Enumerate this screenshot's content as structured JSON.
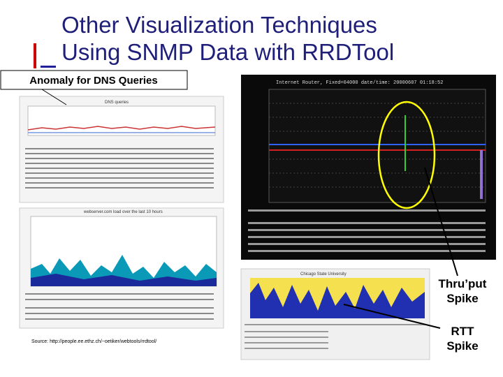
{
  "slide": {
    "title_line1": "Other Visualization Techniques",
    "title_line2": "Using SNMP Data with RRDTool",
    "anomaly_label": "Anomaly for DNS Queries",
    "throughput_label": "Thru’put Spike",
    "rtt_label": "RTT Spike",
    "source": "Source: http://people.ee.ethz.ch/~oetiker/webtools/rrdtool/",
    "screens": {
      "dns_title": "DNS queries",
      "webserver_title": "webserver.com load over the last 10 hours",
      "router_title": "Internet Router, Fixed=04000  date/time: 20000607 01:18:52",
      "chicago_title": "Chicago State University"
    }
  }
}
